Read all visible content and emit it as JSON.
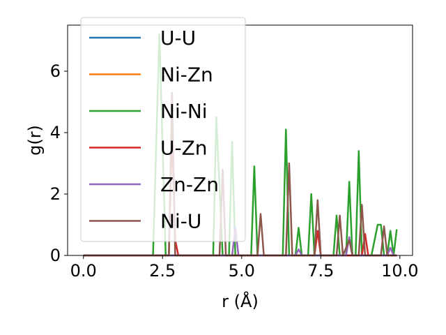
{
  "chart_data": {
    "type": "line",
    "xlabel": "r (Å)",
    "ylabel": "g(r)",
    "xlim": [
      -0.5,
      10.4
    ],
    "ylim": [
      0,
      7.5
    ],
    "xticks": [
      "0.0",
      "2.5",
      "5.0",
      "7.5",
      "10.0"
    ],
    "xtick_values": [
      0,
      2.5,
      5,
      7.5,
      10
    ],
    "yticks": [
      "0",
      "2",
      "4",
      "6"
    ],
    "ytick_values": [
      0,
      2,
      4,
      6
    ],
    "grid": false,
    "legend_position": "top-left",
    "series": [
      {
        "name": "U-U",
        "color": "#1f77b4",
        "x": [
          0,
          9.9
        ],
        "y": [
          0,
          0
        ]
      },
      {
        "name": "Ni-Zn",
        "color": "#ff7f0e",
        "x": [
          0,
          9.9
        ],
        "y": [
          0,
          0
        ]
      },
      {
        "name": "Ni-Ni",
        "color": "#2ca02c",
        "x": [
          0,
          2.2,
          2.4,
          2.6,
          4.1,
          4.2,
          4.4,
          4.6,
          4.7,
          4.8,
          5.0,
          5.3,
          5.4,
          5.5,
          6.3,
          6.4,
          6.5,
          6.7,
          6.8,
          6.9,
          7.1,
          7.2,
          7.3,
          7.9,
          8.0,
          8.1,
          8.3,
          8.4,
          8.5,
          8.6,
          8.7,
          8.8,
          9.1,
          9.3,
          9.4,
          9.5,
          9.6,
          9.7,
          9.8,
          9.9
        ],
        "y": [
          0,
          0,
          7.2,
          0,
          0,
          4.5,
          0,
          0,
          3.7,
          0,
          0,
          0,
          2.9,
          0,
          0,
          4.1,
          0,
          0,
          0.9,
          0,
          0,
          2.0,
          0,
          0,
          1.3,
          0,
          0,
          2.4,
          0,
          0,
          3.4,
          0,
          0,
          1.0,
          1.0,
          0,
          0,
          0.8,
          0,
          0.85
        ]
      },
      {
        "name": "U-Zn",
        "color": "#d62728",
        "x": [
          0,
          2.7,
          2.8,
          2.9,
          3.0,
          7.3,
          7.4,
          7.5,
          8.8,
          8.9,
          9.0,
          9.9
        ],
        "y": [
          0,
          0,
          4.1,
          0.5,
          0,
          0,
          0.8,
          0,
          0,
          0.7,
          0,
          0
        ]
      },
      {
        "name": "Zn-Zn",
        "color": "#9467bd",
        "x": [
          0,
          4.7,
          4.8,
          4.9,
          6.7,
          6.8,
          6.9,
          8.3,
          8.4,
          8.5,
          9.6,
          9.7,
          9.8,
          9.9
        ],
        "y": [
          0,
          0,
          0.9,
          0,
          0,
          0.2,
          0,
          0,
          0.6,
          0,
          0,
          0.25,
          0,
          0
        ]
      },
      {
        "name": "Ni-U",
        "color": "#8c564b",
        "x": [
          0,
          2.7,
          2.8,
          2.9,
          4.3,
          4.4,
          4.5,
          5.5,
          5.6,
          5.7,
          6.4,
          6.5,
          6.6,
          7.3,
          7.4,
          7.5,
          8.0,
          8.1,
          8.2,
          8.4,
          8.5,
          8.7,
          8.8,
          8.9,
          9.4,
          9.5,
          9.6,
          9.9
        ],
        "y": [
          0,
          0,
          5.3,
          0,
          0,
          2.8,
          0,
          0,
          1.35,
          0,
          0,
          3.0,
          0,
          0,
          1.8,
          0,
          0,
          1.3,
          0,
          0.5,
          0,
          0,
          1.65,
          0,
          0,
          0.95,
          0,
          0
        ]
      }
    ]
  }
}
